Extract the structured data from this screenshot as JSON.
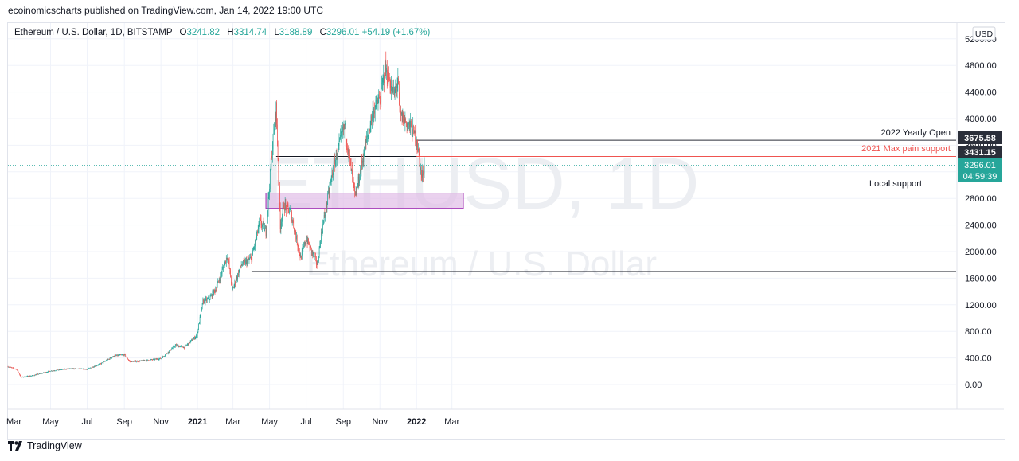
{
  "publish_line": "ecoinomicscharts published on TradingView.com, Jan 14, 2022 19:00 UTC",
  "symbol": {
    "name": "Ethereum / U.S. Dollar, 1D, BITSTAMP",
    "open": "3241.82",
    "high": "3314.74",
    "low": "3188.89",
    "close": "3296.01",
    "change": "+54.19 (+1.67%)"
  },
  "watermark": {
    "ticker": "ETHUSD, 1D",
    "name": "Ethereum / U.S. Dollar"
  },
  "currency": "USD",
  "price_badge": {
    "price": "3296.01",
    "countdown": "04:59:39"
  },
  "level_badges": {
    "yearly_open": "3675.58",
    "max_pain": "3431.15"
  },
  "annotations": {
    "yearly_open": "2022 Yearly Open",
    "max_pain": "2021 Max pain support",
    "local_support": "Local support"
  },
  "footer": {
    "brand": "TradingView"
  },
  "colors": {
    "up": "#26a69a",
    "down": "#ef5350",
    "zone_fill": "#e1bee7",
    "zone_border": "#9c27b0",
    "badge_dark": "#2a2e39",
    "badge_teal": "#26a69a"
  },
  "chart_data": {
    "type": "candlestick",
    "x_ticks": [
      "Mar",
      "May",
      "Jul",
      "Sep",
      "Nov",
      "2021",
      "Mar",
      "May",
      "Jul",
      "Sep",
      "Nov",
      "2022",
      "Mar"
    ],
    "y_ticks": [
      "0.00",
      "400.00",
      "800.00",
      "1200.00",
      "1600.00",
      "2000.00",
      "2400.00",
      "2800.00",
      "3200.00",
      "3600.00",
      "4000.00",
      "4400.00",
      "4800.00",
      "5200.00"
    ],
    "ylim": [
      -300,
      5400
    ],
    "price_path": [
      [
        "2020-02-20",
        270
      ],
      [
        "2020-03-05",
        230
      ],
      [
        "2020-03-13",
        110
      ],
      [
        "2020-04-01",
        135
      ],
      [
        "2020-05-01",
        205
      ],
      [
        "2020-06-01",
        240
      ],
      [
        "2020-07-01",
        230
      ],
      [
        "2020-07-25",
        320
      ],
      [
        "2020-08-15",
        430
      ],
      [
        "2020-09-01",
        450
      ],
      [
        "2020-09-10",
        345
      ],
      [
        "2020-10-01",
        355
      ],
      [
        "2020-11-01",
        390
      ],
      [
        "2020-11-25",
        590
      ],
      [
        "2020-12-10",
        560
      ],
      [
        "2020-12-31",
        740
      ],
      [
        "2021-01-10",
        1250
      ],
      [
        "2021-01-20",
        1280
      ],
      [
        "2021-02-01",
        1450
      ],
      [
        "2021-02-20",
        1950
      ],
      [
        "2021-02-28",
        1420
      ],
      [
        "2021-03-15",
        1800
      ],
      [
        "2021-04-01",
        1900
      ],
      [
        "2021-04-15",
        2450
      ],
      [
        "2021-04-25",
        2300
      ],
      [
        "2021-05-05",
        3500
      ],
      [
        "2021-05-12",
        4170
      ],
      [
        "2021-05-19",
        2400
      ],
      [
        "2021-05-25",
        2700
      ],
      [
        "2021-06-05",
        2600
      ],
      [
        "2021-06-22",
        1900
      ],
      [
        "2021-07-01",
        2200
      ],
      [
        "2021-07-20",
        1800
      ],
      [
        "2021-07-25",
        2200
      ],
      [
        "2021-08-15",
        3250
      ],
      [
        "2021-09-03",
        3900
      ],
      [
        "2021-09-21",
        2800
      ],
      [
        "2021-10-01",
        3300
      ],
      [
        "2021-10-20",
        4100
      ],
      [
        "2021-11-01",
        4300
      ],
      [
        "2021-11-10",
        4750
      ],
      [
        "2021-11-25",
        4350
      ],
      [
        "2021-12-01",
        4600
      ],
      [
        "2021-12-04",
        4050
      ],
      [
        "2021-12-20",
        3900
      ],
      [
        "2022-01-01",
        3700
      ],
      [
        "2022-01-10",
        3100
      ],
      [
        "2022-01-14",
        3296
      ]
    ],
    "levels": {
      "yearly_open": 3675.58,
      "max_pain": 3431.15,
      "last_price": 3296.01,
      "horizontal_line_upper": 3431.15,
      "horizontal_line_lower": 1700
    },
    "support_zone": {
      "low": 2650,
      "high": 2880,
      "label": "Local support"
    },
    "grid": true,
    "scale": "linear"
  }
}
